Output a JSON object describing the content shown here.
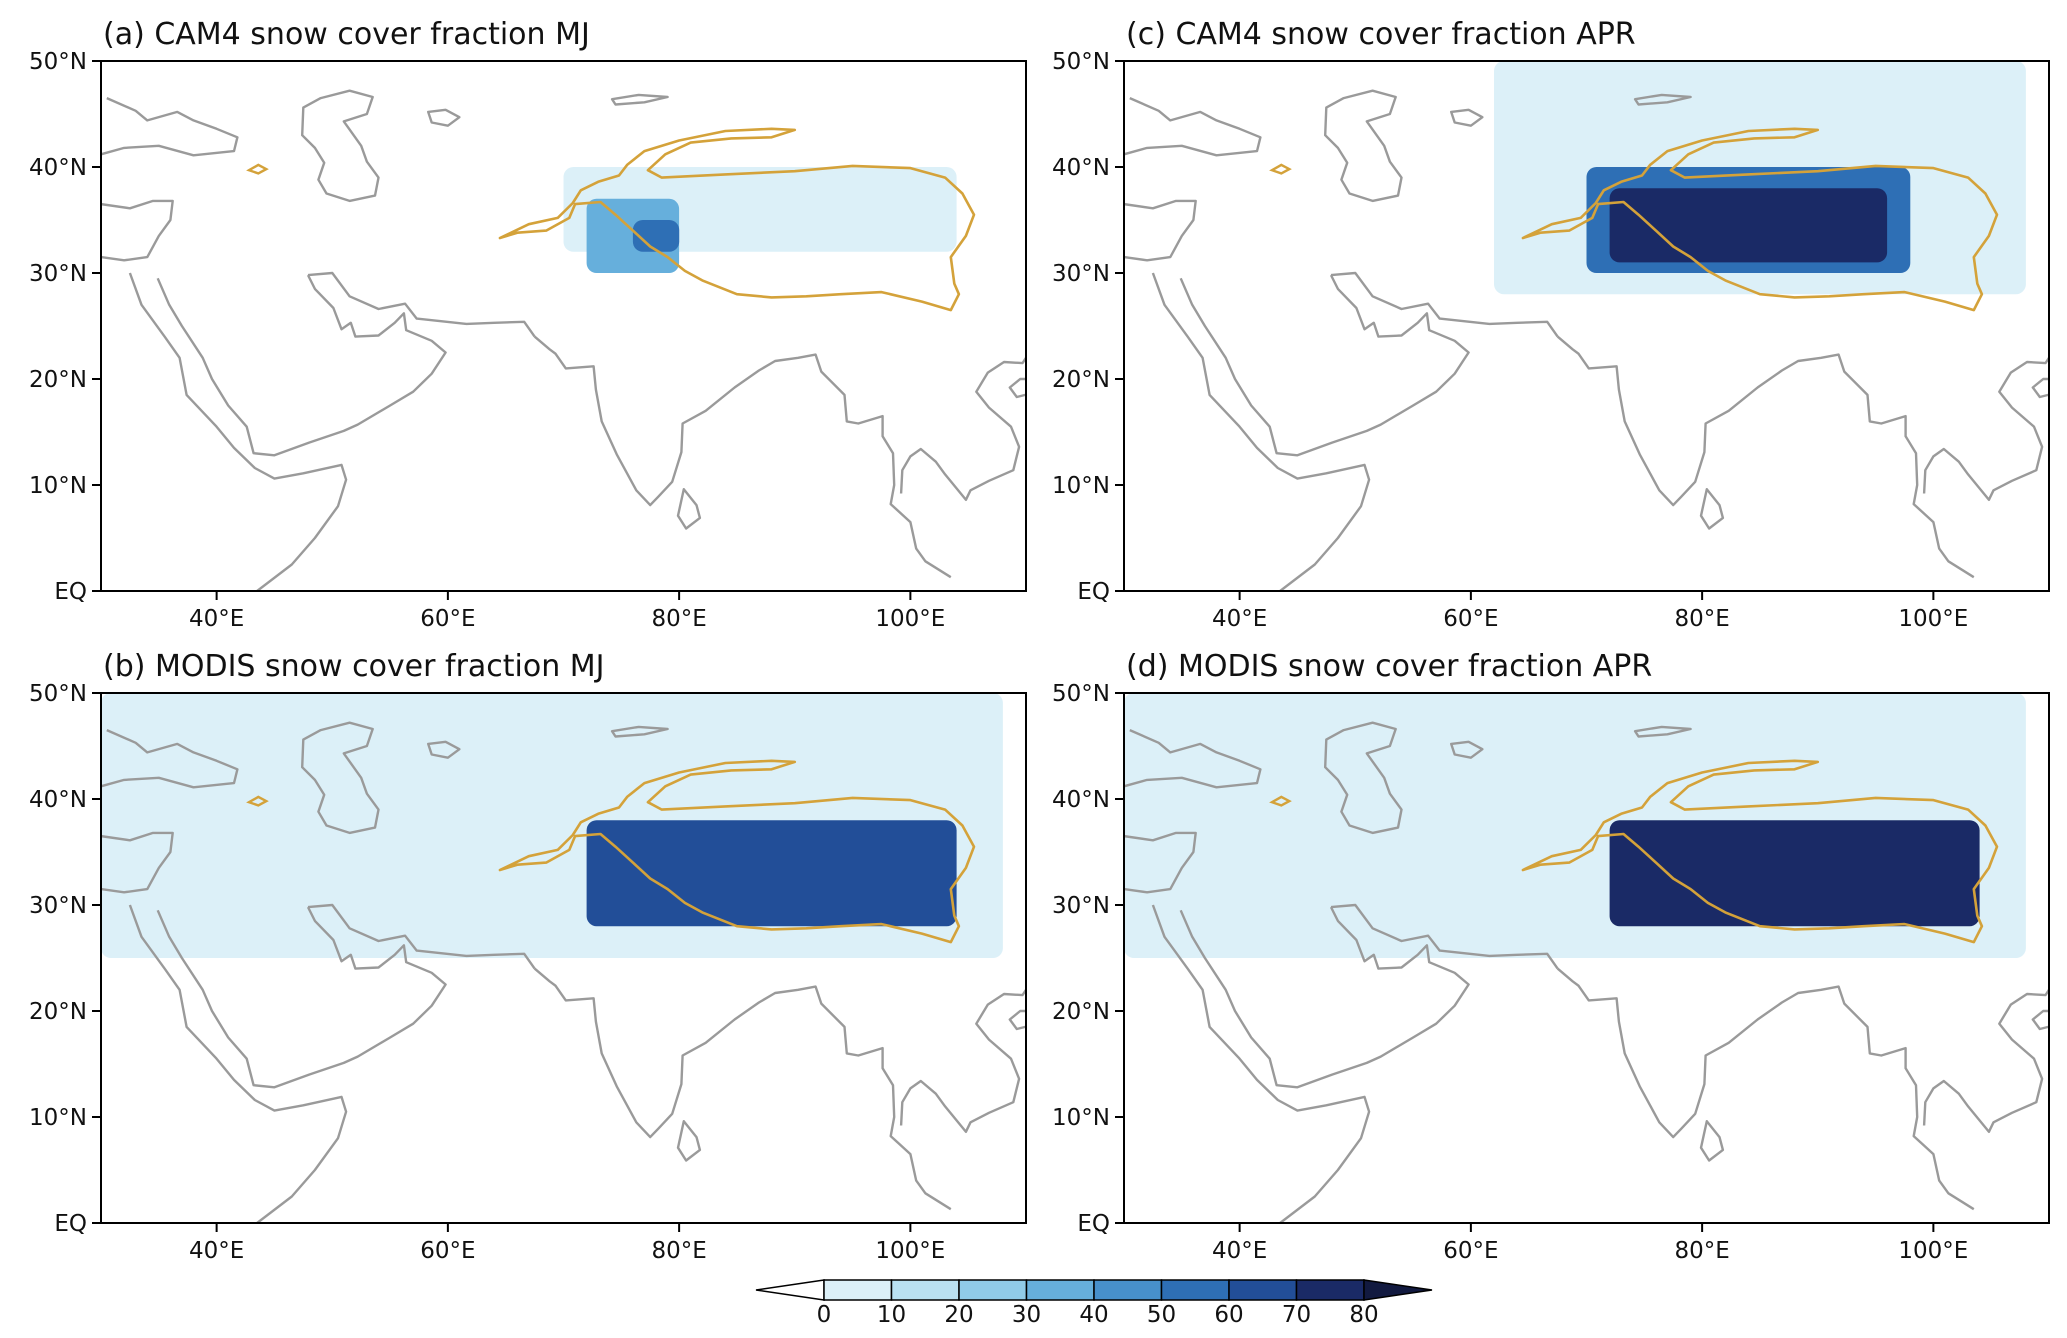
{
  "figure": {
    "panels": [
      {
        "id": "a",
        "title": "(a) CAM4 snow cover fraction MJ",
        "source": "CAM4",
        "season": "MJ",
        "snow_areas": [
          {
            "lon": [
              70,
              104
            ],
            "lat": [
              32,
              40
            ],
            "value": 5
          },
          {
            "lon": [
              72,
              80
            ],
            "lat": [
              30,
              37
            ],
            "value": 35
          },
          {
            "lon": [
              76,
              80
            ],
            "lat": [
              32,
              35
            ],
            "value": 55
          }
        ]
      },
      {
        "id": "c",
        "title": "(c) CAM4 snow cover fraction APR",
        "source": "CAM4",
        "season": "APR",
        "snow_areas": [
          {
            "lon": [
              62,
              108
            ],
            "lat": [
              28,
              50
            ],
            "value": 5
          },
          {
            "lon": [
              70,
              98
            ],
            "lat": [
              30,
              40
            ],
            "value": 55
          },
          {
            "lon": [
              72,
              96
            ],
            "lat": [
              31,
              38
            ],
            "value": 75
          }
        ]
      },
      {
        "id": "b",
        "title": "(b) MODIS snow cover fraction MJ",
        "source": "MODIS",
        "season": "MJ",
        "snow_areas": [
          {
            "lon": [
              30,
              108
            ],
            "lat": [
              25,
              50
            ],
            "value": 5
          },
          {
            "lon": [
              72,
              104
            ],
            "lat": [
              28,
              38
            ],
            "value": 60
          }
        ]
      },
      {
        "id": "d",
        "title": "(d) MODIS snow cover fraction APR",
        "source": "MODIS",
        "season": "APR",
        "snow_areas": [
          {
            "lon": [
              30,
              108
            ],
            "lat": [
              25,
              50
            ],
            "value": 5
          },
          {
            "lon": [
              72,
              104
            ],
            "lat": [
              28,
              38
            ],
            "value": 70
          }
        ]
      }
    ],
    "axes": {
      "lon_range": [
        30,
        110
      ],
      "lat_range": [
        0,
        50
      ],
      "x_ticks": [
        40,
        60,
        80,
        100
      ],
      "x_tick_labels": [
        "40°E",
        "60°E",
        "80°E",
        "100°E"
      ],
      "y_ticks": [
        0,
        10,
        20,
        30,
        40,
        50
      ],
      "y_tick_labels": [
        "EQ",
        "10°N",
        "20°N",
        "30°N",
        "40°N",
        "50°N"
      ]
    },
    "colorbar": {
      "levels": [
        0,
        10,
        20,
        30,
        40,
        50,
        60,
        70,
        80
      ],
      "tick_labels": [
        "0",
        "10",
        "20",
        "30",
        "40",
        "50",
        "60",
        "70",
        "80"
      ],
      "colors": [
        "#ffffff",
        "#dcf0f8",
        "#b9e1f2",
        "#90cbe8",
        "#66afdc",
        "#4790cb",
        "#2e6fb5",
        "#224e98",
        "#1a2a66",
        "#121a40"
      ],
      "extend": "both"
    },
    "colors": {
      "coastline": "#9a9a9a",
      "plateau_contour": "#d4a23a",
      "frame": "#000000"
    }
  }
}
